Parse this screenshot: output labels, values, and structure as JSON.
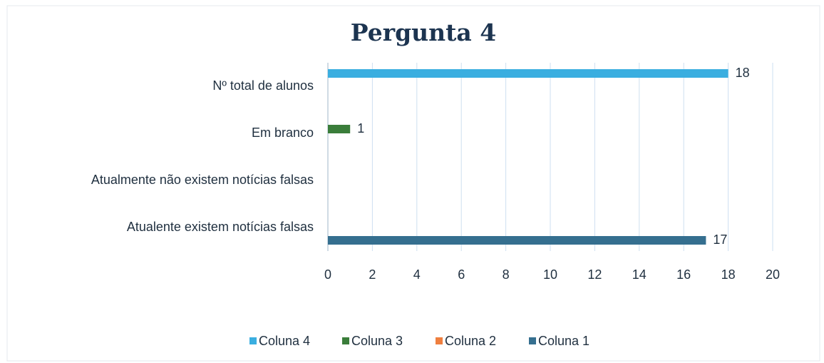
{
  "chart_data": {
    "type": "bar",
    "orientation": "horizontal",
    "title": "Pergunta 4",
    "categories": [
      "Atualente existem notícias falsas",
      "Atualmente não existem notícias falsas",
      "Em branco",
      "Nº total de alunos"
    ],
    "series": [
      {
        "name": "Coluna 1",
        "color": "#356f8f",
        "values": [
          17,
          null,
          null,
          null
        ]
      },
      {
        "name": "Coluna 2",
        "color": "#ef7f3f",
        "values": [
          null,
          null,
          null,
          null
        ]
      },
      {
        "name": "Coluna 3",
        "color": "#3a7d3a",
        "values": [
          null,
          null,
          1,
          null
        ]
      },
      {
        "name": "Coluna 4",
        "color": "#3aaee0",
        "values": [
          null,
          null,
          null,
          18
        ]
      }
    ],
    "xlim": [
      0,
      20
    ],
    "xticks": [
      0,
      2,
      4,
      6,
      8,
      10,
      12,
      14,
      16,
      18,
      20
    ],
    "grid": true,
    "legend": "bottom"
  }
}
